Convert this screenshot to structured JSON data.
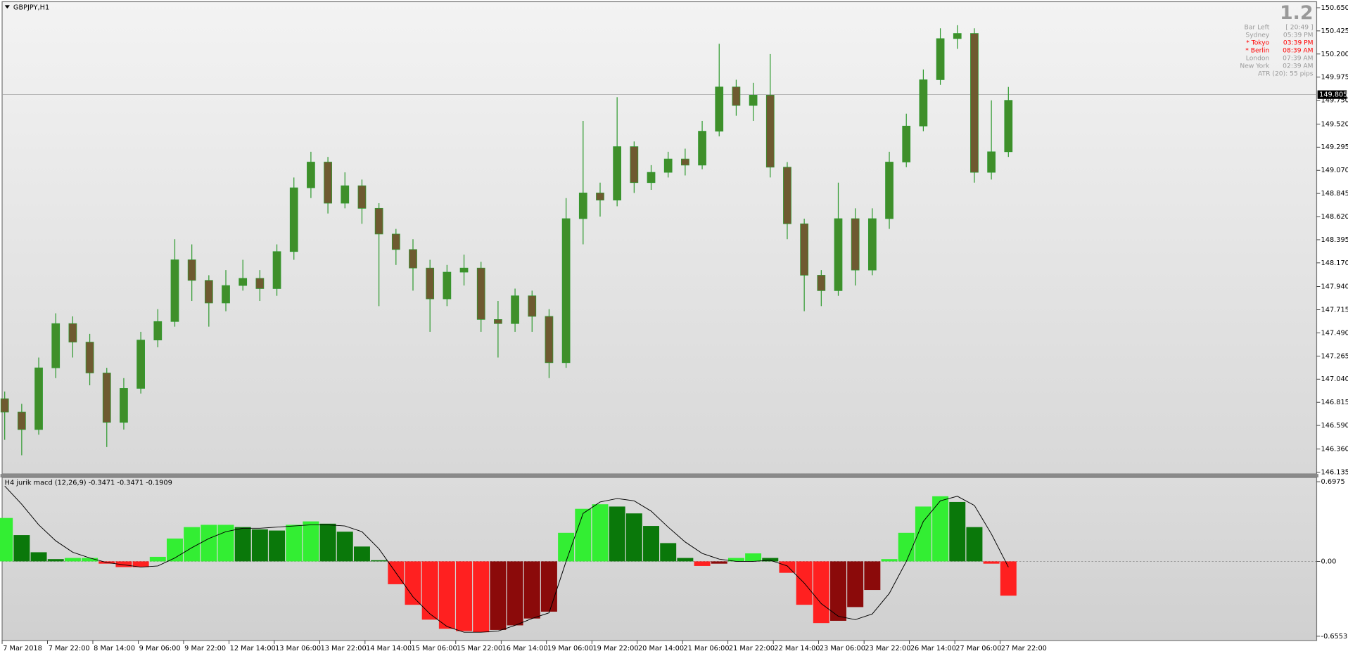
{
  "chart_data": [
    {
      "type": "candlestick",
      "title": "GBPJPY,H1",
      "ylim": [
        146.135,
        150.65
      ],
      "yticks": [
        {
          "value": 150.65,
          "label": "150.650"
        },
        150.425,
        {
          "value": 150.2,
          "label": "150.200"
        },
        149.975,
        {
          "value": 149.75,
          "label": "149.750"
        },
        {
          "value": 149.52,
          "label": "149.520"
        },
        149.295,
        {
          "value": 149.07,
          "label": "149.070"
        },
        148.845,
        {
          "value": 148.62,
          "label": "148.620"
        },
        148.395,
        {
          "value": 148.17,
          "label": "148.170"
        },
        {
          "value": 147.94,
          "label": "147.940"
        },
        147.715,
        {
          "value": 147.49,
          "label": "147.490"
        },
        147.265,
        {
          "value": 147.04,
          "label": "147.040"
        },
        146.815,
        {
          "value": 146.59,
          "label": "146.590"
        },
        {
          "value": 146.36,
          "label": "146.360"
        },
        146.135
      ],
      "current_price": 149.805,
      "up_color": "#3f8f2a",
      "down_color": "#6e5a30",
      "wick_color": "#2f9a2f",
      "xticks": [
        "7 Mar 2018",
        "7 Mar 22:00",
        "8 Mar 14:00",
        "9 Mar 06:00",
        "9 Mar 22:00",
        "12 Mar 14:00",
        "13 Mar 06:00",
        "13 Mar 22:00",
        "14 Mar 14:00",
        "15 Mar 06:00",
        "15 Mar 22:00",
        "16 Mar 14:00",
        "19 Mar 06:00",
        "19 Mar 22:00",
        "20 Mar 14:00",
        "21 Mar 06:00",
        "21 Mar 22:00",
        "22 Mar 14:00",
        "23 Mar 06:00",
        "23 Mar 22:00",
        "26 Mar 14:00",
        "27 Mar 06:00",
        "27 Mar 22:00"
      ],
      "candles": [
        [
          146.85,
          146.92,
          146.45,
          146.72
        ],
        [
          146.72,
          146.8,
          146.3,
          146.55
        ],
        [
          146.55,
          147.25,
          146.5,
          147.15
        ],
        [
          147.15,
          147.68,
          147.05,
          147.58
        ],
        [
          147.58,
          147.65,
          147.25,
          147.4
        ],
        [
          147.4,
          147.48,
          146.98,
          147.1
        ],
        [
          147.1,
          147.15,
          146.38,
          146.62
        ],
        [
          146.62,
          147.05,
          146.55,
          146.95
        ],
        [
          146.95,
          147.5,
          146.9,
          147.42
        ],
        [
          147.42,
          147.72,
          147.35,
          147.6
        ],
        [
          147.6,
          148.4,
          147.55,
          148.2
        ],
        [
          148.2,
          148.35,
          147.8,
          148.0
        ],
        [
          148.0,
          148.05,
          147.55,
          147.78
        ],
        [
          147.78,
          148.1,
          147.7,
          147.95
        ],
        [
          147.95,
          148.2,
          147.9,
          148.02
        ],
        [
          148.02,
          148.1,
          147.8,
          147.92
        ],
        [
          147.92,
          148.35,
          147.85,
          148.28
        ],
        [
          148.28,
          149.0,
          148.2,
          148.9
        ],
        [
          148.9,
          149.25,
          148.8,
          149.15
        ],
        [
          149.15,
          149.2,
          148.65,
          148.75
        ],
        [
          148.75,
          149.05,
          148.7,
          148.92
        ],
        [
          148.92,
          148.98,
          148.55,
          148.7
        ],
        [
          148.7,
          148.75,
          147.75,
          148.45
        ],
        [
          148.45,
          148.5,
          148.15,
          148.3
        ],
        [
          148.3,
          148.4,
          147.9,
          148.12
        ],
        [
          148.12,
          148.2,
          147.5,
          147.82
        ],
        [
          147.82,
          148.15,
          147.75,
          148.08
        ],
        [
          148.08,
          148.25,
          147.95,
          148.12
        ],
        [
          148.12,
          148.18,
          147.5,
          147.62
        ],
        [
          147.62,
          147.8,
          147.25,
          147.58
        ],
        [
          147.58,
          147.92,
          147.5,
          147.85
        ],
        [
          147.85,
          147.9,
          147.5,
          147.65
        ],
        [
          147.65,
          147.72,
          147.05,
          147.2
        ],
        [
          147.2,
          148.8,
          147.15,
          148.6
        ],
        [
          148.6,
          149.55,
          148.35,
          148.85
        ],
        [
          148.85,
          148.95,
          148.62,
          148.78
        ],
        [
          148.78,
          149.78,
          148.72,
          149.3
        ],
        [
          149.3,
          149.35,
          148.85,
          148.95
        ],
        [
          148.95,
          149.12,
          148.88,
          149.05
        ],
        [
          149.05,
          149.25,
          149.0,
          149.18
        ],
        [
          149.18,
          149.28,
          149.02,
          149.12
        ],
        [
          149.12,
          149.55,
          149.08,
          149.45
        ],
        [
          149.45,
          150.3,
          149.4,
          149.88
        ],
        [
          149.88,
          149.95,
          149.6,
          149.7
        ],
        [
          149.7,
          149.92,
          149.55,
          149.8
        ],
        [
          149.8,
          150.2,
          149.0,
          149.1
        ],
        [
          149.1,
          149.15,
          148.4,
          148.55
        ],
        [
          148.55,
          148.6,
          147.7,
          148.05
        ],
        [
          148.05,
          148.1,
          147.75,
          147.9
        ],
        [
          147.9,
          148.95,
          147.85,
          148.6
        ],
        [
          148.6,
          148.7,
          147.95,
          148.1
        ],
        [
          148.1,
          148.7,
          148.05,
          148.6
        ],
        [
          148.6,
          149.25,
          148.5,
          149.15
        ],
        [
          149.15,
          149.62,
          149.1,
          149.5
        ],
        [
          149.5,
          150.05,
          149.45,
          149.95
        ],
        [
          149.95,
          150.45,
          149.9,
          150.35
        ],
        [
          150.35,
          150.48,
          150.25,
          150.4
        ],
        [
          150.4,
          150.45,
          148.95,
          149.05
        ],
        [
          149.05,
          149.75,
          148.98,
          149.25
        ],
        [
          149.25,
          149.88,
          149.2,
          149.75
        ]
      ],
      "info_panel": {
        "title": "1.2",
        "rows": [
          {
            "label": "Bar Left",
            "value": "[ 20:49 ]",
            "color": "#9a9a9a"
          },
          {
            "label": "Sydney",
            "value": "05:39 PM",
            "color": "#9a9a9a"
          },
          {
            "label": "* Tokyo",
            "value": "03:39 PM",
            "color": "#ff0000"
          },
          {
            "label": "* Berlin",
            "value": "08:39 AM",
            "color": "#ff0000"
          },
          {
            "label": "London",
            "value": "07:39 AM",
            "color": "#9a9a9a"
          },
          {
            "label": "New York",
            "value": "02:39 AM",
            "color": "#9a9a9a"
          }
        ],
        "atr": "ATR (20): 55 pips"
      }
    },
    {
      "type": "histogram",
      "title": "H4 jurik macd (12,26,9) -0.3471 -0.3471 -0.1909",
      "ylim": [
        -0.6553,
        0.6975
      ],
      "yticks": [
        0.6975,
        {
          "value": 0,
          "label": "0.00"
        },
        -0.6553
      ],
      "colors": {
        "up_rising": "#33ee33",
        "up_falling": "#0a780a",
        "down_falling": "#ff2020",
        "down_rising": "#8b0a0a"
      },
      "signal_color": "#000000",
      "values": [
        0.38,
        0.23,
        0.08,
        0.02,
        0.03,
        0.03,
        -0.02,
        -0.05,
        -0.05,
        0.04,
        0.2,
        0.3,
        0.32,
        0.32,
        0.3,
        0.28,
        0.27,
        0.32,
        0.35,
        0.33,
        0.26,
        0.13,
        0.01,
        -0.2,
        -0.38,
        -0.51,
        -0.59,
        -0.61,
        -0.62,
        -0.6,
        -0.56,
        -0.5,
        -0.44,
        0.25,
        0.46,
        0.5,
        0.48,
        0.42,
        0.31,
        0.16,
        0.03,
        -0.04,
        -0.02,
        0.03,
        0.07,
        0.03,
        -0.1,
        -0.38,
        -0.54,
        -0.52,
        -0.4,
        -0.25,
        0.02,
        0.25,
        0.48,
        0.57,
        0.52,
        0.3,
        -0.02,
        -0.3
      ],
      "signal": [
        0.66,
        0.5,
        0.32,
        0.18,
        0.08,
        0.03,
        -0.01,
        -0.03,
        -0.05,
        -0.04,
        0.03,
        0.12,
        0.2,
        0.26,
        0.29,
        0.29,
        0.3,
        0.31,
        0.32,
        0.32,
        0.31,
        0.26,
        0.11,
        -0.1,
        -0.31,
        -0.46,
        -0.57,
        -0.62,
        -0.62,
        -0.61,
        -0.56,
        -0.5,
        -0.45,
        0.0,
        0.42,
        0.52,
        0.55,
        0.53,
        0.44,
        0.3,
        0.17,
        0.07,
        0.02,
        0.0,
        0.0,
        0.01,
        -0.04,
        -0.19,
        -0.37,
        -0.48,
        -0.51,
        -0.46,
        -0.28,
        0.0,
        0.35,
        0.53,
        0.57,
        0.49,
        0.24,
        -0.05
      ]
    }
  ]
}
